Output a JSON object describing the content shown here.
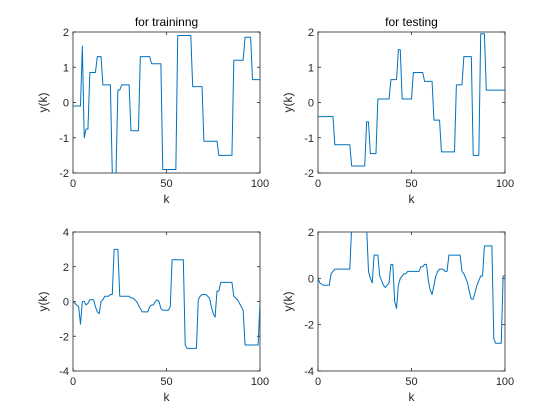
{
  "figure": {
    "background": "#ffffff",
    "line_color": "#0072bd",
    "axis_color": "#262626"
  },
  "chart_data": [
    {
      "type": "line",
      "title": "for traininng",
      "xlabel": "k",
      "ylabel": "y(k)",
      "xlim": [
        0,
        100
      ],
      "ylim": [
        -2,
        2
      ],
      "xticks": [
        0,
        50,
        100
      ],
      "yticks": [
        -2,
        -1,
        0,
        1,
        2
      ],
      "grid": false,
      "series": [
        {
          "x": [
            0,
            1,
            2,
            3,
            4,
            5,
            6,
            7,
            8,
            9,
            10,
            11,
            12,
            13,
            14,
            15,
            16,
            17,
            18,
            19,
            20,
            21,
            22,
            23,
            24,
            25,
            26,
            27,
            28,
            29,
            30,
            31,
            32,
            33,
            34,
            35,
            36,
            37,
            38,
            39,
            40,
            41,
            42,
            43,
            44,
            45,
            46,
            47,
            48,
            49,
            50,
            51,
            52,
            53,
            54,
            55,
            56,
            57,
            58,
            59,
            60,
            61,
            62,
            63,
            64,
            65,
            66,
            67,
            68,
            69,
            70,
            71,
            72,
            73,
            74,
            75,
            76,
            77,
            78,
            79,
            80,
            81,
            82,
            83,
            84,
            85,
            86,
            87,
            88,
            89,
            90,
            91,
            92,
            93,
            94,
            95,
            96,
            97,
            98,
            99,
            100
          ],
          "y": [
            -0.1,
            -0.1,
            -0.1,
            -0.1,
            -0.1,
            1.6,
            -1.0,
            -0.75,
            -0.75,
            0.85,
            0.85,
            0.85,
            0.85,
            1.3,
            1.3,
            1.3,
            0.5,
            0.5,
            0.5,
            0.5,
            0.5,
            -2.0,
            -2.0,
            -2.0,
            0.35,
            0.35,
            0.5,
            0.5,
            0.5,
            0.5,
            0.5,
            -0.8,
            -0.8,
            -0.8,
            -0.8,
            -0.8,
            1.3,
            1.3,
            1.3,
            1.3,
            1.3,
            1.3,
            1.1,
            1.1,
            1.1,
            1.1,
            1.1,
            1.1,
            -1.9,
            -1.9,
            -1.9,
            -1.9,
            -1.9,
            -1.9,
            -1.9,
            -1.9,
            1.9,
            1.9,
            1.9,
            1.9,
            1.9,
            1.9,
            1.9,
            1.9,
            0.45,
            0.45,
            0.45,
            0.45,
            0.45,
            0.45,
            -1.1,
            -1.1,
            -1.1,
            -1.1,
            -1.1,
            -1.1,
            -1.1,
            -1.1,
            -1.5,
            -1.5,
            -1.5,
            -1.5,
            -1.5,
            -1.5,
            -1.5,
            -1.5,
            1.2,
            1.2,
            1.2,
            1.2,
            1.2,
            1.2,
            1.85,
            1.85,
            1.85,
            1.85,
            0.65,
            0.65,
            0.65,
            0.65,
            0.65
          ]
        }
      ]
    },
    {
      "type": "line",
      "title": "for testing",
      "xlabel": "k",
      "ylabel": "y(k)",
      "xlim": [
        0,
        100
      ],
      "ylim": [
        -2,
        2
      ],
      "xticks": [
        0,
        50,
        100
      ],
      "yticks": [
        -2,
        -1,
        0,
        1,
        2
      ],
      "grid": false,
      "series": [
        {
          "x": [
            0,
            1,
            2,
            3,
            4,
            5,
            6,
            7,
            8,
            9,
            10,
            11,
            12,
            13,
            14,
            15,
            16,
            17,
            18,
            19,
            20,
            21,
            22,
            23,
            24,
            25,
            26,
            27,
            28,
            29,
            30,
            31,
            32,
            33,
            34,
            35,
            36,
            37,
            38,
            39,
            40,
            41,
            42,
            43,
            44,
            45,
            46,
            47,
            48,
            49,
            50,
            51,
            52,
            53,
            54,
            55,
            56,
            57,
            58,
            59,
            60,
            61,
            62,
            63,
            64,
            65,
            66,
            67,
            68,
            69,
            70,
            71,
            72,
            73,
            74,
            75,
            76,
            77,
            78,
            79,
            80,
            81,
            82,
            83,
            84,
            85,
            86,
            87,
            88,
            89,
            90,
            91,
            92,
            93,
            94,
            95,
            96,
            97,
            98,
            99,
            100
          ],
          "y": [
            -0.4,
            -0.4,
            -0.4,
            -0.4,
            -0.4,
            -0.4,
            -0.4,
            -0.4,
            -0.4,
            -1.2,
            -1.2,
            -1.2,
            -1.2,
            -1.2,
            -1.2,
            -1.2,
            -1.2,
            -1.2,
            -1.8,
            -1.8,
            -1.8,
            -1.8,
            -1.8,
            -1.8,
            -1.8,
            -1.8,
            -0.55,
            -0.55,
            -1.45,
            -1.45,
            -1.45,
            -1.45,
            0.1,
            0.1,
            0.1,
            0.1,
            0.1,
            0.1,
            0.1,
            0.65,
            0.65,
            0.65,
            0.65,
            1.5,
            1.5,
            0.1,
            0.1,
            0.1,
            0.1,
            0.1,
            0.1,
            0.85,
            0.85,
            0.85,
            0.85,
            0.85,
            0.85,
            0.6,
            0.6,
            0.6,
            0.6,
            0.6,
            -0.5,
            -0.5,
            -0.5,
            -0.5,
            -1.4,
            -1.4,
            -1.4,
            -1.4,
            -1.4,
            -1.4,
            -1.4,
            -1.4,
            0.5,
            0.5,
            0.5,
            0.5,
            1.3,
            1.3,
            1.3,
            1.3,
            1.3,
            -1.5,
            -1.5,
            -1.5,
            -1.5,
            1.95,
            1.95,
            1.95,
            0.35,
            0.35,
            0.35,
            0.35,
            0.35,
            0.35,
            0.35,
            0.35,
            0.35,
            0.35,
            0.35
          ]
        }
      ]
    },
    {
      "type": "line",
      "title": "",
      "xlabel": "k",
      "ylabel": "y(k)",
      "xlim": [
        0,
        100
      ],
      "ylim": [
        -4,
        4
      ],
      "xticks": [
        0,
        50,
        100
      ],
      "yticks": [
        -4,
        -2,
        0,
        2,
        4
      ],
      "grid": false,
      "series": [
        {
          "x": [
            0,
            1,
            2,
            3,
            4,
            5,
            6,
            7,
            8,
            9,
            10,
            11,
            12,
            13,
            14,
            15,
            16,
            17,
            18,
            19,
            20,
            21,
            22,
            23,
            24,
            25,
            26,
            27,
            28,
            29,
            30,
            31,
            32,
            33,
            34,
            35,
            36,
            37,
            38,
            39,
            40,
            41,
            42,
            43,
            44,
            45,
            46,
            47,
            48,
            49,
            50,
            51,
            52,
            53,
            54,
            55,
            56,
            57,
            58,
            59,
            60,
            61,
            62,
            63,
            64,
            65,
            66,
            67,
            68,
            69,
            70,
            71,
            72,
            73,
            74,
            75,
            76,
            77,
            78,
            79,
            80,
            81,
            82,
            83,
            84,
            85,
            86,
            87,
            88,
            89,
            90,
            91,
            92,
            93,
            94,
            95,
            96,
            97,
            98,
            99,
            100
          ],
          "y": [
            0.0,
            -0.1,
            -0.2,
            -0.3,
            -1.3,
            0.0,
            0.0,
            -0.2,
            -0.1,
            0.1,
            0.1,
            0.1,
            -0.3,
            -0.6,
            -0.7,
            0.0,
            0.1,
            0.3,
            0.3,
            0.3,
            0.4,
            0.4,
            3.0,
            3.0,
            3.0,
            0.3,
            0.3,
            0.3,
            0.3,
            0.3,
            0.3,
            0.2,
            0.2,
            0.1,
            0.0,
            -0.2,
            -0.4,
            -0.6,
            -0.6,
            -0.6,
            -0.6,
            -0.3,
            -0.2,
            -0.2,
            0.0,
            0.1,
            0.0,
            -0.4,
            -0.5,
            -0.5,
            -0.5,
            -0.5,
            -0.3,
            2.4,
            2.4,
            2.4,
            2.4,
            2.4,
            2.4,
            2.4,
            -2.5,
            -2.7,
            -2.7,
            -2.7,
            -2.7,
            -2.7,
            -2.7,
            0.1,
            0.3,
            0.4,
            0.4,
            0.4,
            0.3,
            0.2,
            -0.3,
            -0.7,
            -0.9,
            0.6,
            0.6,
            1.1,
            1.1,
            1.1,
            1.1,
            1.1,
            1.1,
            1.1,
            0.3,
            0.2,
            0.1,
            -0.1,
            -0.3,
            -0.5,
            -2.5,
            -2.5,
            -2.5,
            -2.5,
            -2.5,
            -2.5,
            -2.5,
            -2.5,
            0.0
          ]
        }
      ]
    },
    {
      "type": "line",
      "title": "",
      "xlabel": "k",
      "ylabel": "y(k)",
      "xlim": [
        0,
        100
      ],
      "ylim": [
        -4,
        2
      ],
      "xticks": [
        0,
        50,
        100
      ],
      "yticks": [
        -4,
        -2,
        0,
        2
      ],
      "grid": false,
      "series": [
        {
          "x": [
            0,
            1,
            2,
            3,
            4,
            5,
            6,
            7,
            8,
            9,
            10,
            11,
            12,
            13,
            14,
            15,
            16,
            17,
            18,
            19,
            20,
            21,
            22,
            23,
            24,
            25,
            26,
            27,
            28,
            29,
            30,
            31,
            32,
            33,
            34,
            35,
            36,
            37,
            38,
            39,
            40,
            41,
            42,
            43,
            44,
            45,
            46,
            47,
            48,
            49,
            50,
            51,
            52,
            53,
            54,
            55,
            56,
            57,
            58,
            59,
            60,
            61,
            62,
            63,
            64,
            65,
            66,
            67,
            68,
            69,
            70,
            71,
            72,
            73,
            74,
            75,
            76,
            77,
            78,
            79,
            80,
            81,
            82,
            83,
            84,
            85,
            86,
            87,
            88,
            89,
            90,
            91,
            92,
            93,
            94,
            95,
            96,
            97,
            98,
            99,
            100
          ],
          "y": [
            0.0,
            -0.2,
            -0.25,
            -0.3,
            -0.3,
            -0.3,
            -0.3,
            0.2,
            0.3,
            0.4,
            0.4,
            0.4,
            0.4,
            0.4,
            0.4,
            0.4,
            0.4,
            0.4,
            2.2,
            2.2,
            2.2,
            2.2,
            2.2,
            2.2,
            2.2,
            2.2,
            2.2,
            0.3,
            0.0,
            -0.2,
            1.0,
            1.0,
            1.0,
            0.1,
            -0.1,
            -0.3,
            -0.4,
            -0.3,
            -0.2,
            0.6,
            0.6,
            -1.0,
            -1.3,
            -0.3,
            0.0,
            0.1,
            0.2,
            0.2,
            0.3,
            0.3,
            0.3,
            0.3,
            0.3,
            0.3,
            0.3,
            0.5,
            0.5,
            0.6,
            0.6,
            -0.1,
            -0.5,
            -0.7,
            -0.3,
            0.1,
            0.3,
            0.4,
            0.4,
            0.4,
            0.3,
            0.3,
            1.0,
            1.0,
            1.0,
            1.0,
            1.0,
            1.0,
            1.0,
            0.3,
            0.2,
            0.0,
            -0.2,
            -0.6,
            -0.9,
            -0.9,
            -0.6,
            -0.3,
            -0.1,
            0.1,
            0.1,
            1.4,
            1.4,
            1.4,
            1.4,
            1.4,
            -2.6,
            -2.8,
            -2.8,
            -2.8,
            -2.8,
            0.1,
            0.1
          ]
        }
      ]
    }
  ]
}
